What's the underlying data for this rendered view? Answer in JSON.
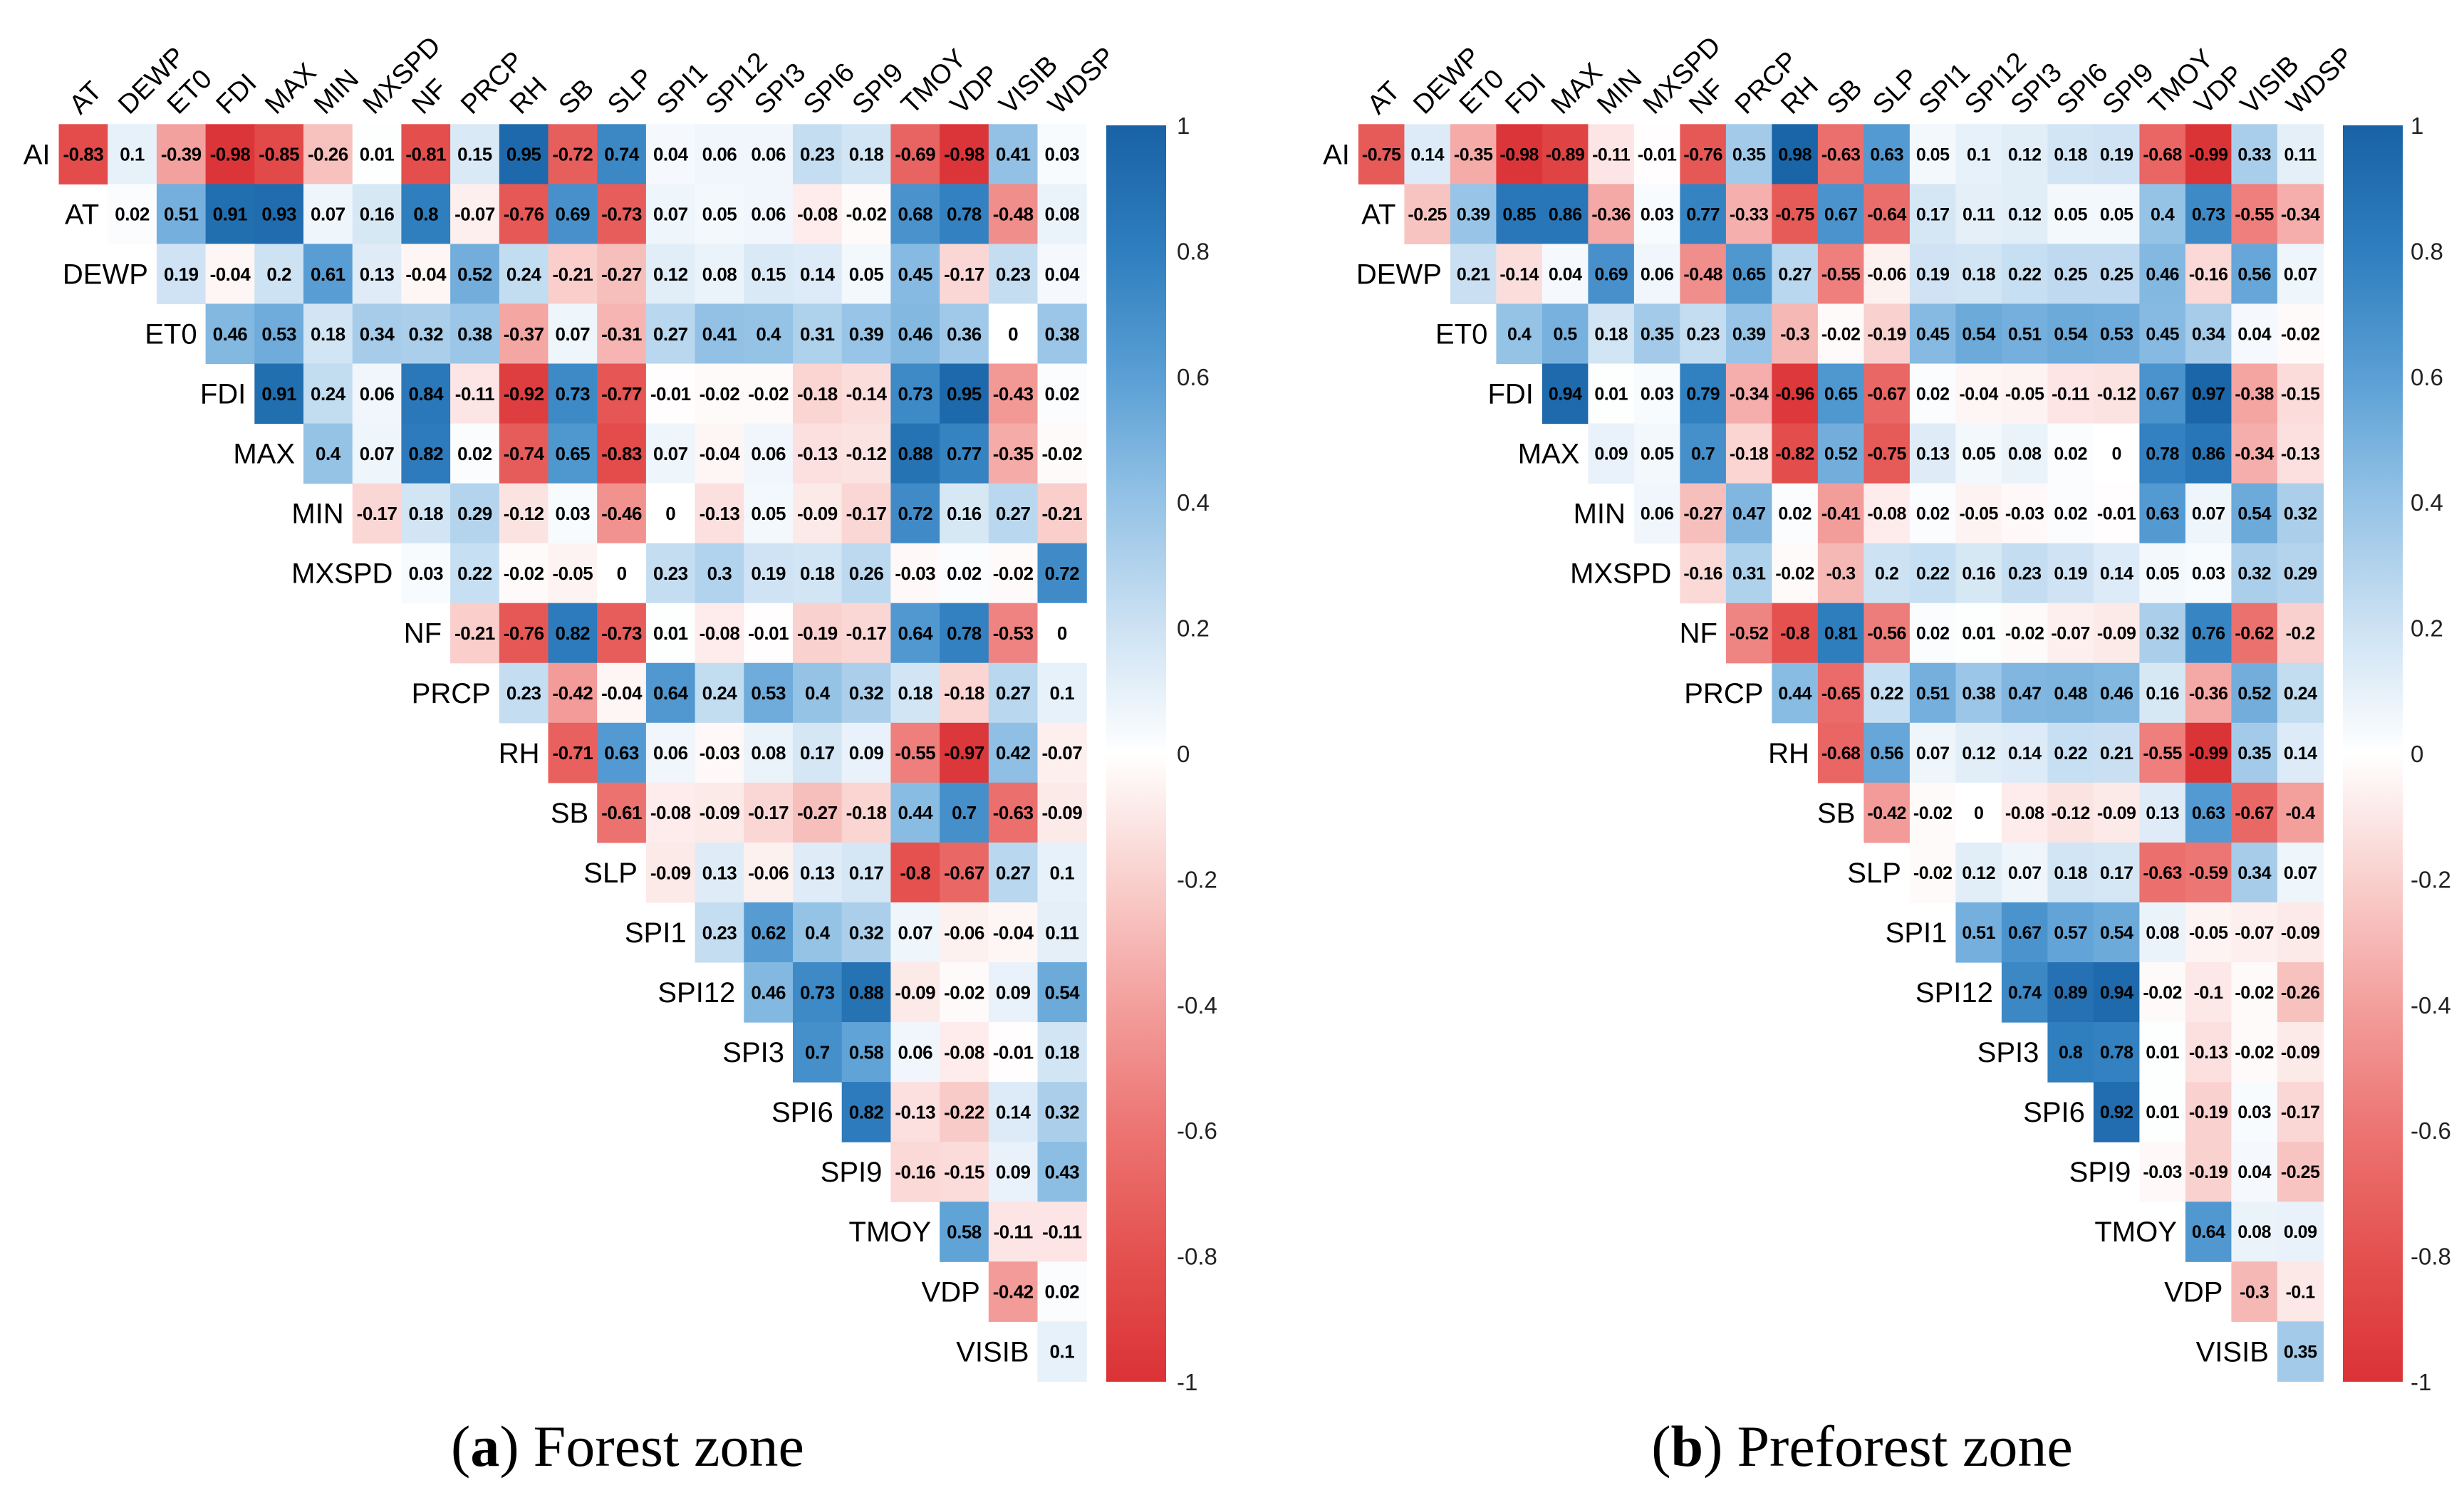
{
  "color_scale": [
    {
      "value": -1.0,
      "color": "#DB3236"
    },
    {
      "value": -0.8,
      "color": "#E4514F"
    },
    {
      "value": -0.6,
      "color": "#EC7472"
    },
    {
      "value": -0.4,
      "color": "#F39F9C"
    },
    {
      "value": -0.2,
      "color": "#F9D0CD"
    },
    {
      "value": 0.0,
      "color": "#FFFFFF"
    },
    {
      "value": 0.2,
      "color": "#CDE2F3"
    },
    {
      "value": 0.4,
      "color": "#95C3E6"
    },
    {
      "value": 0.6,
      "color": "#5A9FD5"
    },
    {
      "value": 0.8,
      "color": "#2F7EBE"
    },
    {
      "value": 1.0,
      "color": "#1862A5"
    }
  ],
  "chart_data": [
    {
      "type": "heatmap",
      "triangle": "upper",
      "caption": {
        "open": "(",
        "label": "a",
        "close": ")",
        "title": "Forest zone"
      },
      "value_range": [
        -1,
        1
      ],
      "colorbar_ticks": [
        1,
        0.8,
        0.6,
        0.4,
        0.2,
        0,
        -0.2,
        -0.4,
        -0.6,
        -0.8,
        -1
      ],
      "row_labels": [
        "AI",
        "AT",
        "DEWP",
        "ET0",
        "FDI",
        "MAX",
        "MIN",
        "MXSPD",
        "NF",
        "PRCP",
        "RH",
        "SB",
        "SLP",
        "SPI1",
        "SPI12",
        "SPI3",
        "SPI6",
        "SPI9",
        "TMOY",
        "VDP",
        "VISIB"
      ],
      "col_labels": [
        "AT",
        "DEWP",
        "ET0",
        "FDI",
        "MAX",
        "MIN",
        "MXSPD",
        "NF",
        "PRCP",
        "RH",
        "SB",
        "SLP",
        "SPI1",
        "SPI12",
        "SPI3",
        "SPI6",
        "SPI9",
        "TMOY",
        "VDP",
        "VISIB",
        "WDSP"
      ],
      "values": [
        [
          -0.83,
          0.1,
          -0.39,
          -0.98,
          -0.85,
          -0.26,
          0.01,
          -0.81,
          0.15,
          0.95,
          -0.72,
          0.74,
          0.04,
          0.06,
          0.06,
          0.23,
          0.18,
          -0.69,
          -0.98,
          0.41,
          0.03
        ],
        [
          0.02,
          0.51,
          0.91,
          0.93,
          0.07,
          0.16,
          0.8,
          -0.07,
          -0.76,
          0.69,
          -0.73,
          0.07,
          0.05,
          0.06,
          -0.08,
          -0.02,
          0.68,
          0.78,
          -0.48,
          0.08
        ],
        [
          0.19,
          -0.04,
          0.2,
          0.61,
          0.13,
          -0.04,
          0.52,
          0.24,
          -0.21,
          -0.27,
          0.12,
          0.08,
          0.15,
          0.14,
          0.05,
          0.45,
          -0.17,
          0.23,
          0.04
        ],
        [
          0.46,
          0.53,
          0.18,
          0.34,
          0.32,
          0.38,
          -0.37,
          0.07,
          -0.31,
          0.27,
          0.41,
          0.4,
          0.31,
          0.39,
          0.46,
          0.36,
          0,
          0.38
        ],
        [
          0.91,
          0.24,
          0.06,
          0.84,
          -0.11,
          -0.92,
          0.73,
          -0.77,
          -0.01,
          -0.02,
          -0.02,
          -0.18,
          -0.14,
          0.73,
          0.95,
          -0.43,
          0.02
        ],
        [
          0.4,
          0.07,
          0.82,
          0.02,
          -0.74,
          0.65,
          -0.83,
          0.07,
          -0.04,
          0.06,
          -0.13,
          -0.12,
          0.88,
          0.77,
          -0.35,
          -0.02
        ],
        [
          -0.17,
          0.18,
          0.29,
          -0.12,
          0.03,
          -0.46,
          0,
          -0.13,
          0.05,
          -0.09,
          -0.17,
          0.72,
          0.16,
          0.27,
          -0.21
        ],
        [
          0.03,
          0.22,
          -0.02,
          -0.05,
          0,
          0.23,
          0.3,
          0.19,
          0.18,
          0.26,
          -0.03,
          0.02,
          -0.02,
          0.72
        ],
        [
          -0.21,
          -0.76,
          0.82,
          -0.73,
          0.01,
          -0.08,
          -0.01,
          -0.19,
          -0.17,
          0.64,
          0.78,
          -0.53,
          0
        ],
        [
          0.23,
          -0.42,
          -0.04,
          0.64,
          0.24,
          0.53,
          0.4,
          0.32,
          0.18,
          -0.18,
          0.27,
          0.1
        ],
        [
          -0.71,
          0.63,
          0.06,
          -0.03,
          0.08,
          0.17,
          0.09,
          -0.55,
          -0.97,
          0.42,
          -0.07
        ],
        [
          -0.61,
          -0.08,
          -0.09,
          -0.17,
          -0.27,
          -0.18,
          0.44,
          0.7,
          -0.63,
          -0.09
        ],
        [
          -0.09,
          0.13,
          -0.06,
          0.13,
          0.17,
          -0.8,
          -0.67,
          0.27,
          0.1
        ],
        [
          0.23,
          0.62,
          0.4,
          0.32,
          0.07,
          -0.06,
          -0.04,
          0.11
        ],
        [
          0.46,
          0.73,
          0.88,
          -0.09,
          -0.02,
          0.09,
          0.54
        ],
        [
          0.7,
          0.58,
          0.06,
          -0.08,
          -0.01,
          0.18
        ],
        [
          0.82,
          -0.13,
          -0.22,
          0.14,
          0.32
        ],
        [
          -0.16,
          -0.15,
          0.09,
          0.43
        ],
        [
          0.58,
          -0.11,
          -0.11
        ],
        [
          -0.42,
          0.02
        ],
        [
          0.1
        ]
      ]
    },
    {
      "type": "heatmap",
      "triangle": "upper",
      "caption": {
        "open": "(",
        "label": "b",
        "close": ")",
        "title": "Preforest zone"
      },
      "value_range": [
        -1,
        1
      ],
      "colorbar_ticks": [
        1,
        0.8,
        0.6,
        0.4,
        0.2,
        0,
        -0.2,
        -0.4,
        -0.6,
        -0.8,
        -1
      ],
      "row_labels": [
        "AI",
        "AT",
        "DEWP",
        "ET0",
        "FDI",
        "MAX",
        "MIN",
        "MXSPD",
        "NF",
        "PRCP",
        "RH",
        "SB",
        "SLP",
        "SPI1",
        "SPI12",
        "SPI3",
        "SPI6",
        "SPI9",
        "TMOY",
        "VDP",
        "VISIB"
      ],
      "col_labels": [
        "AT",
        "DEWP",
        "ET0",
        "FDI",
        "MAX",
        "MIN",
        "MXSPD",
        "NF",
        "PRCP",
        "RH",
        "SB",
        "SLP",
        "SPI1",
        "SPI12",
        "SPI3",
        "SPI6",
        "SPI9",
        "TMOY",
        "VDP",
        "VISIB",
        "WDSP"
      ],
      "values": [
        [
          -0.75,
          0.14,
          -0.35,
          -0.98,
          -0.89,
          -0.11,
          -0.01,
          -0.76,
          0.35,
          0.98,
          -0.63,
          0.63,
          0.05,
          0.1,
          0.12,
          0.18,
          0.19,
          -0.68,
          -0.99,
          0.33,
          0.11
        ],
        [
          -0.25,
          0.39,
          0.85,
          0.86,
          -0.36,
          0.03,
          0.77,
          -0.33,
          -0.75,
          0.67,
          -0.64,
          0.17,
          0.11,
          0.12,
          0.05,
          0.05,
          0.4,
          0.73,
          -0.55,
          -0.34
        ],
        [
          0.21,
          -0.14,
          0.04,
          0.69,
          0.06,
          -0.48,
          0.65,
          0.27,
          -0.55,
          -0.06,
          0.19,
          0.18,
          0.22,
          0.25,
          0.25,
          0.46,
          -0.16,
          0.56,
          0.07
        ],
        [
          0.4,
          0.5,
          0.18,
          0.35,
          0.23,
          0.39,
          -0.3,
          -0.02,
          -0.19,
          0.45,
          0.54,
          0.51,
          0.54,
          0.53,
          0.45,
          0.34,
          0.04,
          -0.02
        ],
        [
          0.94,
          0.01,
          0.03,
          0.79,
          -0.34,
          -0.96,
          0.65,
          -0.67,
          0.02,
          -0.04,
          -0.05,
          -0.11,
          -0.12,
          0.67,
          0.97,
          -0.38,
          -0.15
        ],
        [
          0.09,
          0.05,
          0.7,
          -0.18,
          -0.82,
          0.52,
          -0.75,
          0.13,
          0.05,
          0.08,
          0.02,
          0,
          0.78,
          0.86,
          -0.34,
          -0.13
        ],
        [
          0.06,
          -0.27,
          0.47,
          0.02,
          -0.41,
          -0.08,
          0.02,
          -0.05,
          -0.03,
          0.02,
          -0.01,
          0.63,
          0.07,
          0.54,
          0.32
        ],
        [
          -0.16,
          0.31,
          -0.02,
          -0.3,
          0.2,
          0.22,
          0.16,
          0.23,
          0.19,
          0.14,
          0.05,
          0.03,
          0.32,
          0.29
        ],
        [
          -0.52,
          -0.8,
          0.81,
          -0.56,
          0.02,
          0.01,
          -0.02,
          -0.07,
          -0.09,
          0.32,
          0.76,
          -0.62,
          -0.2
        ],
        [
          0.44,
          -0.65,
          0.22,
          0.51,
          0.38,
          0.47,
          0.48,
          0.46,
          0.16,
          -0.36,
          0.52,
          0.24
        ],
        [
          -0.68,
          0.56,
          0.07,
          0.12,
          0.14,
          0.22,
          0.21,
          -0.55,
          -0.99,
          0.35,
          0.14
        ],
        [
          -0.42,
          -0.02,
          0,
          -0.08,
          -0.12,
          -0.09,
          0.13,
          0.63,
          -0.67,
          -0.4
        ],
        [
          -0.02,
          0.12,
          0.07,
          0.18,
          0.17,
          -0.63,
          -0.59,
          0.34,
          0.07
        ],
        [
          0.51,
          0.67,
          0.57,
          0.54,
          0.08,
          -0.05,
          -0.07,
          -0.09
        ],
        [
          0.74,
          0.89,
          0.94,
          -0.02,
          -0.1,
          -0.02,
          -0.26
        ],
        [
          0.8,
          0.78,
          0.01,
          -0.13,
          -0.02,
          -0.09
        ],
        [
          0.92,
          0.01,
          -0.19,
          0.03,
          -0.17
        ],
        [
          -0.03,
          -0.19,
          0.04,
          -0.25
        ],
        [
          0.64,
          0.08,
          0.09
        ],
        [
          -0.3,
          -0.1
        ],
        [
          0.35
        ]
      ]
    }
  ]
}
